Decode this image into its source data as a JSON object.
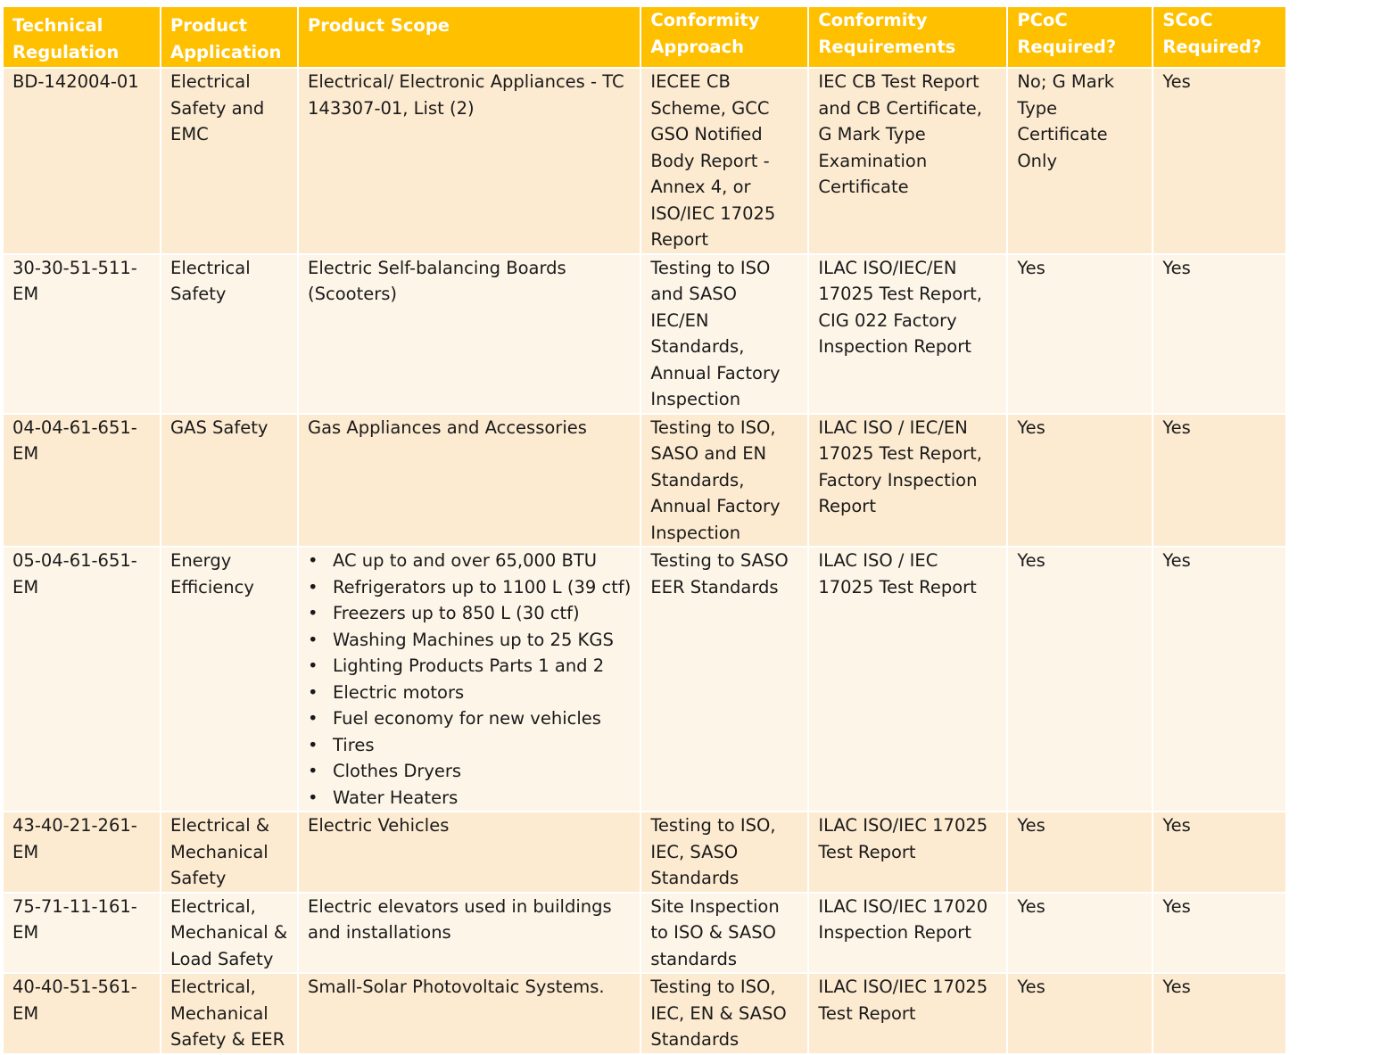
{
  "headers": [
    "Technical Regulation",
    "Product Application",
    "Product Scope",
    "Conformity Approach",
    "Conformity Requirements",
    "PCoC Required?",
    "SCoC Required?"
  ],
  "rows": [
    {
      "regulation": "BD-142004-01",
      "application": "Electrical Safety and EMC",
      "scope": "Electrical/ Electronic Appliances - TC 143307-01, List (2)",
      "approach": "IECEE CB Scheme, GCC GSO Notified Body Report  - Annex 4, or ISO/IEC 17025 Report",
      "requirements": "IEC CB Test Report and CB Certificate, G Mark Type Examination Certificate",
      "pcoc": "No; G Mark Type Certificate Only",
      "scoc": "Yes"
    },
    {
      "regulation": "30-30-51-511-EM",
      "application": "Electrical Safety",
      "scope": "Electric Self-balancing Boards (Scooters)",
      "approach": "Testing to ISO and SASO IEC/EN Standards, Annual Factory Inspection",
      "requirements": "ILAC ISO/IEC/EN 17025 Test Report, CIG 022 Factory Inspection Report",
      "pcoc": "Yes",
      "scoc": "Yes"
    },
    {
      "regulation": "04-04-61-651-EM",
      "application": "GAS Safety",
      "scope": "Gas Appliances and Accessories",
      "approach": "Testing to ISO, SASO and EN Standards, Annual Factory Inspection",
      "requirements": "ILAC ISO / IEC/EN 17025 Test Report, Factory Inspection Report",
      "pcoc": "Yes",
      "scoc": "Yes"
    },
    {
      "regulation": "05-04-61-651-EM",
      "application": "Energy Efficiency",
      "scope_list": [
        "AC up to and over 65,000 BTU",
        "Refrigerators up to 1100 L (39 ctf)",
        "Freezers up to 850 L (30 ctf)",
        "Washing Machines up to 25 KGS",
        "Lighting Products Parts 1 and 2",
        "Electric motors",
        "Fuel economy for new vehicles",
        "Tires",
        "Clothes Dryers",
        "Water Heaters"
      ],
      "approach": "Testing to SASO EER Standards",
      "requirements": "ILAC ISO / IEC  17025 Test Report",
      "pcoc": "Yes",
      "scoc": "Yes"
    },
    {
      "regulation": "43-40-21-261-EM",
      "application": "Electrical & Mechanical Safety",
      "scope": "Electric Vehicles",
      "approach": "Testing to ISO, IEC, SASO Standards",
      "requirements": "ILAC ISO/IEC  17025 Test Report",
      "pcoc": "Yes",
      "scoc": "Yes"
    },
    {
      "regulation": "75-71-11-161-EM",
      "application": "Electrical, Mechanical & Load Safety",
      "scope": "Electric elevators used in buildings and installations",
      "approach": "Site Inspection to ISO & SASO standards",
      "requirements": "ILAC ISO/IEC  17020 Inspection  Report",
      "pcoc": "Yes",
      "scoc": "Yes"
    },
    {
      "regulation": "40-40-51-561-EM",
      "application": "Electrical, Mechanical Safety & EER",
      "scope": "Small-Solar Photovoltaic Systems.",
      "approach": "Testing to ISO, IEC, EN & SASO Standards",
      "requirements": "ILAC ISO/IEC  17025 Test  Report",
      "pcoc": "Yes",
      "scoc": "Yes"
    }
  ]
}
